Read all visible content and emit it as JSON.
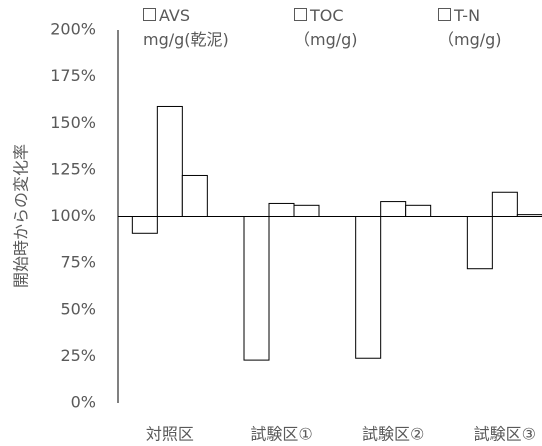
{
  "chart_data": {
    "type": "bar",
    "y_label": "開始時からの変化率",
    "categories": [
      "対照区",
      "試験区①",
      "試験区②",
      "試験区③"
    ],
    "series": [
      {
        "name": "AVS\nmg/g(乾泥)",
        "color": "#ffffff",
        "values": [
          91,
          23,
          24,
          72
        ]
      },
      {
        "name": "TOC\n（mg/g)",
        "color": "#ffffff",
        "values": [
          159,
          107,
          108,
          113
        ]
      },
      {
        "name": "T-N\n（mg/g)",
        "color": "#ffffff",
        "values": [
          122,
          106,
          106,
          101
        ]
      }
    ],
    "x_axis_crosses": 100,
    "ylim": [
      0,
      200
    ],
    "yticks": [
      {
        "value": 0,
        "label": "0%"
      },
      {
        "value": 25,
        "label": "25%"
      },
      {
        "value": 50,
        "label": "50%"
      },
      {
        "value": 75,
        "label": "75%"
      },
      {
        "value": 100,
        "label": "100%"
      },
      {
        "value": 125,
        "label": "125%"
      },
      {
        "value": 150,
        "label": "150%"
      },
      {
        "value": 175,
        "label": "175%"
      },
      {
        "value": 200,
        "label": "200%"
      }
    ],
    "grid": false
  }
}
